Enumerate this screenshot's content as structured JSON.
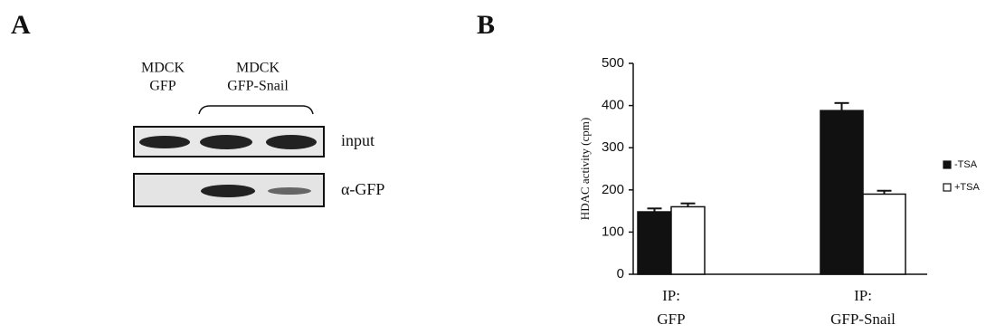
{
  "panel_a": {
    "label": "A",
    "lanes": [
      [
        "MDCK",
        "GFP"
      ],
      [
        "MDCK",
        "GFP-Snail"
      ]
    ],
    "rows": [
      "input",
      "α-GFP"
    ]
  },
  "panel_b": {
    "label": "B"
  },
  "chart_data": {
    "type": "bar",
    "categories": [
      "IP:\nGFP",
      "IP:\nGFP-Snail"
    ],
    "y_label": "HDAC activity (cpm)",
    "series": [
      {
        "name": "-TSA",
        "color": "#111111",
        "values": [
          148,
          388
        ],
        "errors": [
          8,
          18
        ]
      },
      {
        "name": "+TSA",
        "color": "#ffffff",
        "values": [
          160,
          190
        ],
        "errors": [
          8,
          8
        ]
      }
    ],
    "ylim": [
      0,
      500
    ],
    "yticks": [
      0,
      100,
      200,
      300,
      400,
      500
    ],
    "legend": "right"
  }
}
